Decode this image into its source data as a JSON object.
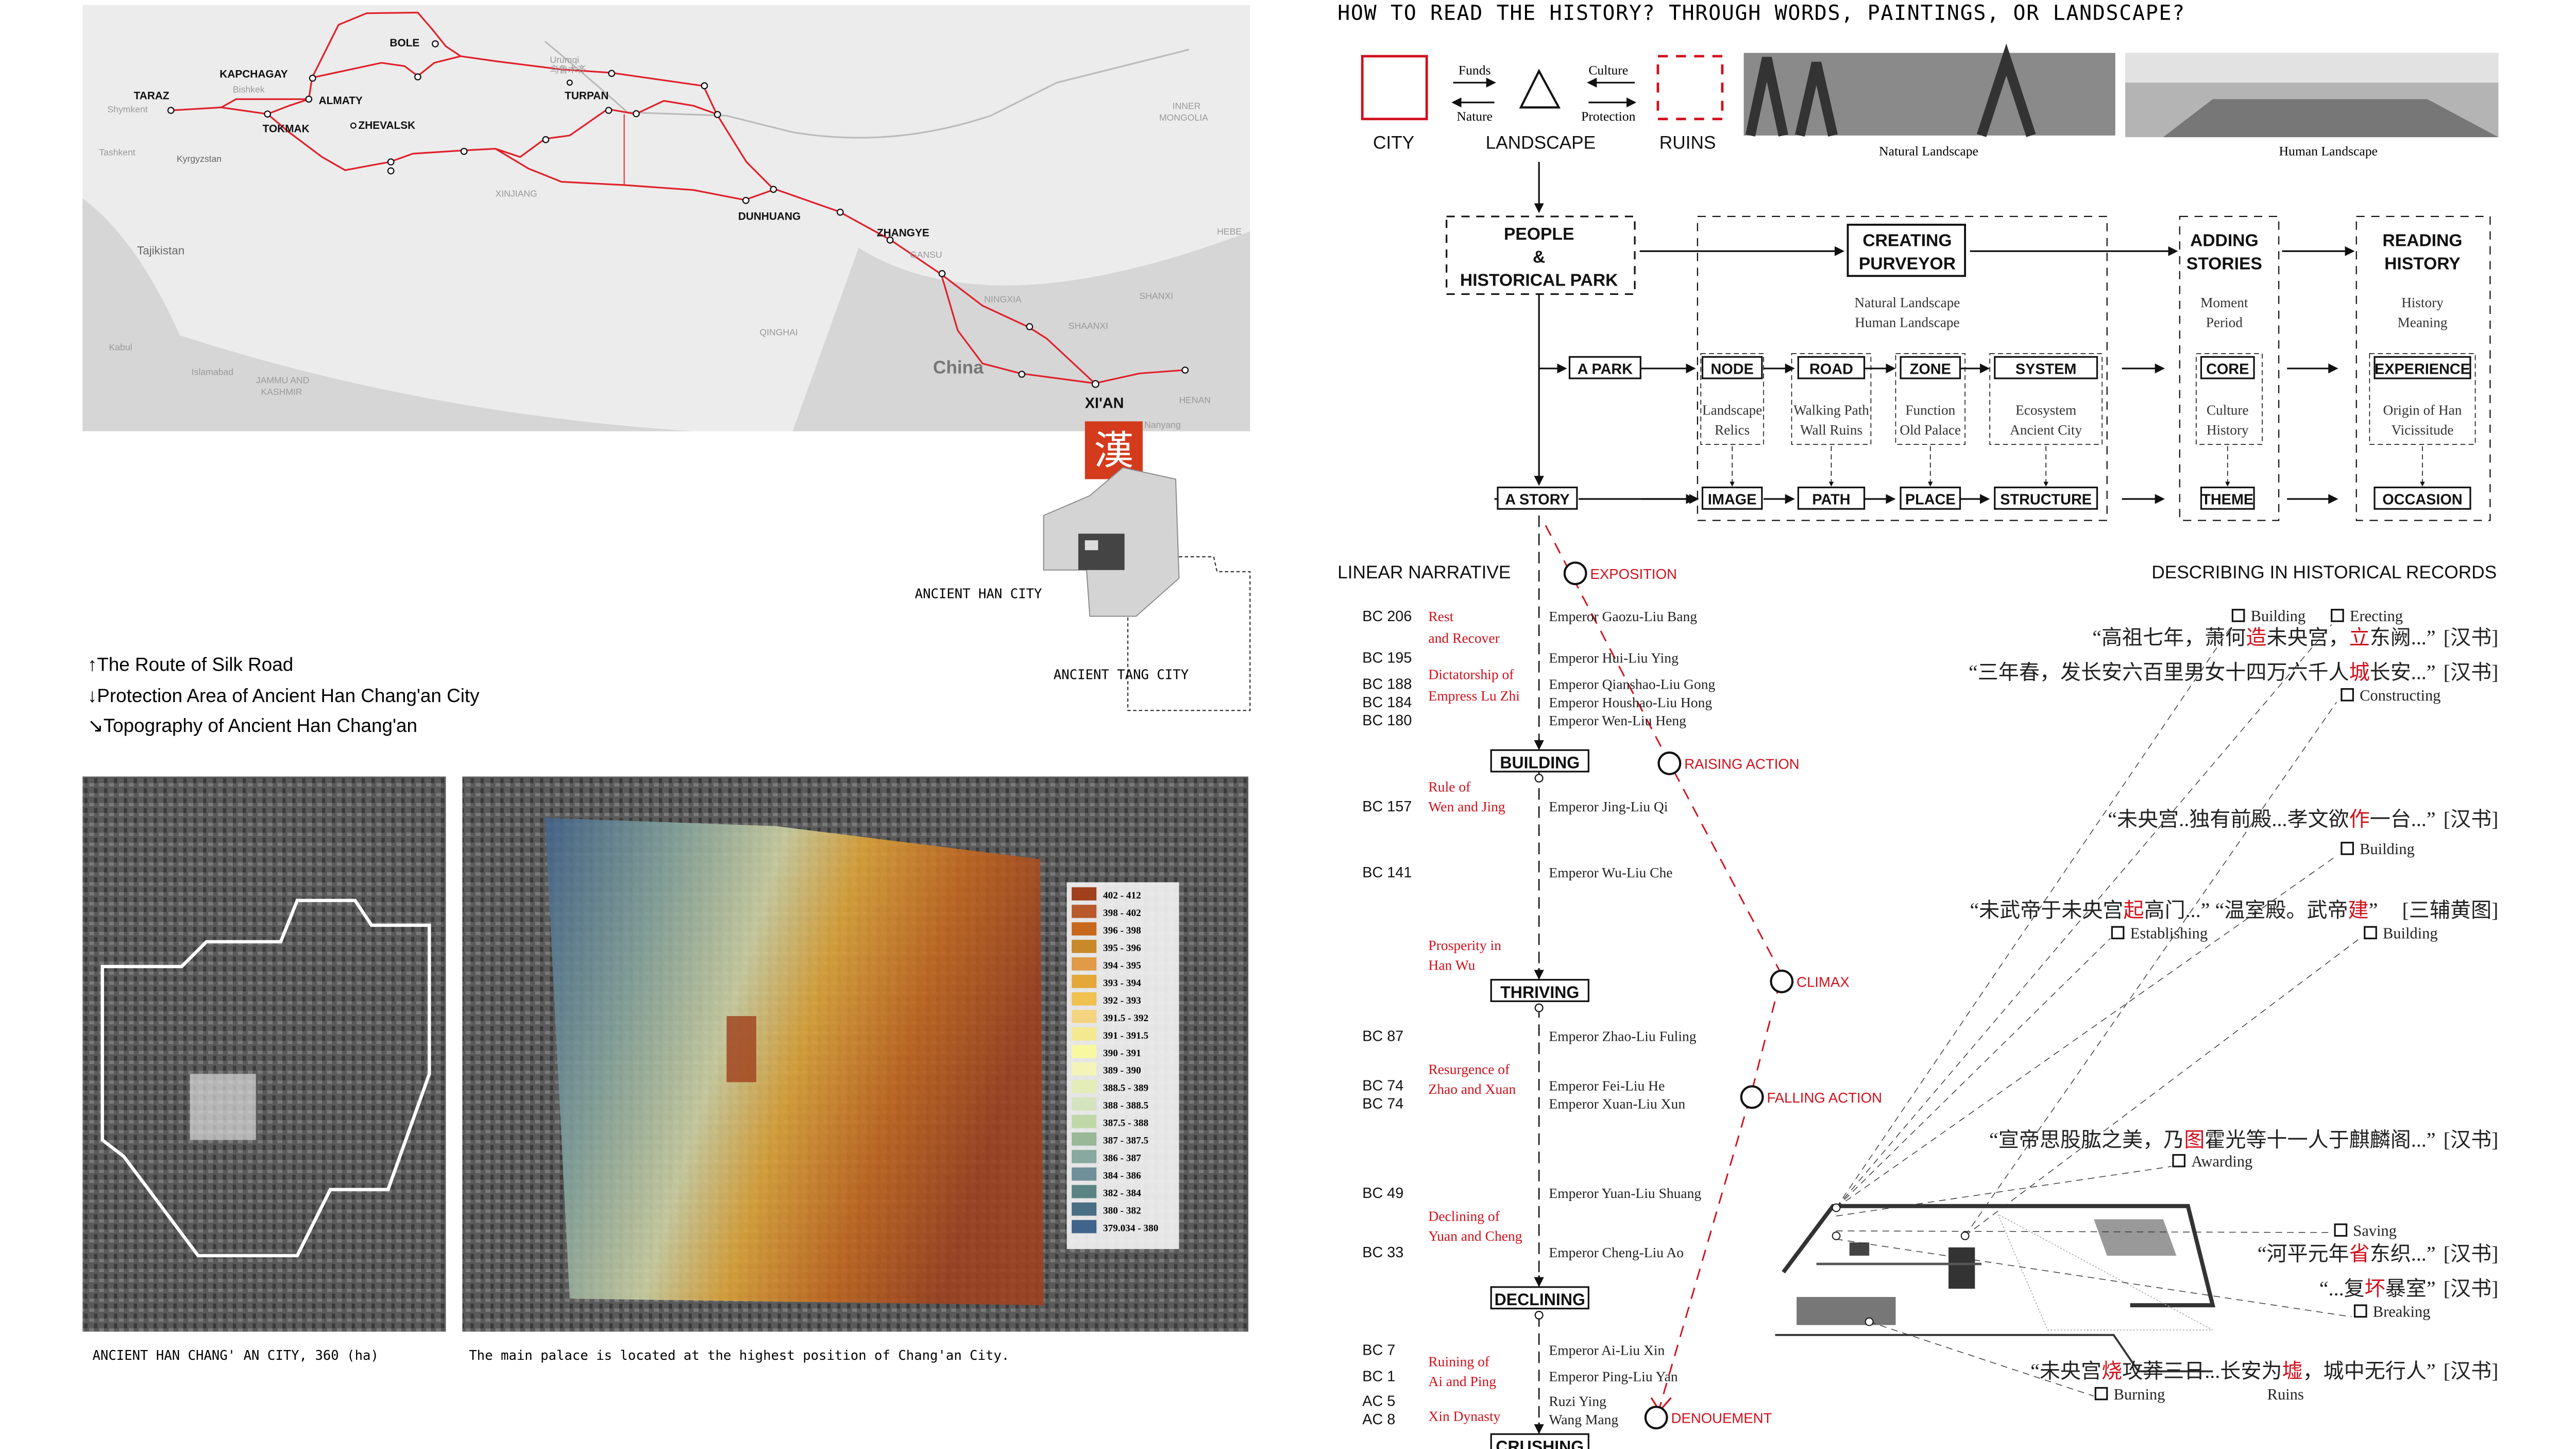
{
  "colors": {
    "accent_red": "#d0101c",
    "route_red": "#e0202a",
    "ink": "#111111"
  },
  "map": {
    "cities": [
      "BOLE",
      "KAPCHAGAY",
      "TARAZ",
      "ALMATY",
      "TOKMAK",
      "ZHEVALSK",
      "TURPAN",
      "DUNHUANG",
      "ZHANGYE",
      "XI'AN"
    ],
    "places": [
      "Urumqi",
      "乌鲁木齐",
      "Bishkek",
      "Shymkent",
      "Tashkent",
      "Kyrgyzstan",
      "Tajikistan",
      "XINJIANG",
      "QINGHAI",
      "GANSU",
      "NINGXIA",
      "SHAANXI",
      "SHANXI",
      "INNER",
      "MONGOLIA",
      "HENAN",
      "Nanyang",
      "China",
      "Kabul",
      "Islamabad",
      "JAMMU AND",
      "KASHMIR",
      "HEBE"
    ],
    "seal_text": "汉"
  },
  "plan": {
    "han_label": "ANCIENT HAN CITY",
    "tang_label": "ANCIENT TANG CITY"
  },
  "legend_left": [
    {
      "arrow": "↑",
      "text": "The Route of Silk Road"
    },
    {
      "arrow": "↓",
      "text": "Protection Area of Ancient Han Chang'an City"
    },
    {
      "arrow": "↘",
      "text": "Topography of Ancient Han Chang'an"
    }
  ],
  "captions": {
    "satellite": "ANCIENT HAN CHANG' AN CITY, 360 (ha)",
    "topography": "The main palace is located at the highest position of Chang'an City."
  },
  "elevation_legend": [
    {
      "range": "402 - 412",
      "color": "#a0401c"
    },
    {
      "range": "398 - 402",
      "color": "#b85a2c"
    },
    {
      "range": "396 - 398",
      "color": "#c8681c"
    },
    {
      "range": "395 - 396",
      "color": "#c88a28"
    },
    {
      "range": "394 - 395",
      "color": "#e09a48"
    },
    {
      "range": "393 - 394",
      "color": "#e4a838"
    },
    {
      "range": "392 - 393",
      "color": "#f0c050"
    },
    {
      "range": "391.5 - 392",
      "color": "#f4d480"
    },
    {
      "range": "391 - 391.5",
      "color": "#f4e890"
    },
    {
      "range": "390 - 391",
      "color": "#f8f8a0"
    },
    {
      "range": "389 - 390",
      "color": "#f4f4b8"
    },
    {
      "range": "388.5 - 389",
      "color": "#e4ecb8"
    },
    {
      "range": "388 - 388.5",
      "color": "#d4e4c0"
    },
    {
      "range": "387.5 - 388",
      "color": "#c0d8a8"
    },
    {
      "range": "387 - 387.5",
      "color": "#98b898"
    },
    {
      "range": "386 - 387",
      "color": "#88a8a0"
    },
    {
      "range": "384 - 386",
      "color": "#6f9098"
    },
    {
      "range": "382 - 384",
      "color": "#5a8484"
    },
    {
      "range": "380 - 382",
      "color": "#4a6e84"
    },
    {
      "range": "379.034 - 380",
      "color": "#40648c"
    }
  ],
  "header": {
    "title": "HOW TO READ THE HISTORY? THROUGH WORDS, PAINTINGS, OR LANDSCAPE?"
  },
  "concept": {
    "city": "CITY",
    "landscape": "LANDSCAPE",
    "ruins": "RUINS",
    "funds": "Funds",
    "nature": "Nature",
    "culture": "Culture",
    "protection": "Protection",
    "photo_natural": "Natural Landscape",
    "photo_human": "Human Landscape"
  },
  "flow": {
    "people": [
      "PEOPLE",
      "&",
      "HISTORICAL PARK"
    ],
    "creating": [
      "CREATING",
      "PURVEYOR"
    ],
    "creating_sub": [
      "Natural Landscape",
      "Human Landscape"
    ],
    "adding": [
      "ADDING",
      "STORIES"
    ],
    "adding_sub": [
      "Moment",
      "Period"
    ],
    "reading": [
      "READING",
      "HISTORY"
    ],
    "reading_sub": [
      "History",
      "Meaning"
    ],
    "park": "A PARK",
    "story": "A STORY",
    "park_row": [
      "NODE",
      "ROAD",
      "ZONE",
      "SYSTEM",
      "CORE",
      "EXPERIENCE"
    ],
    "park_sub": [
      [
        "Landscape",
        "Relics"
      ],
      [
        "Walking Path",
        "Wall Ruins"
      ],
      [
        "Function",
        "Old Palace"
      ],
      [
        "Ecosystem",
        "Ancient City"
      ],
      [
        "Culture",
        "History"
      ],
      [
        "Origin of Han",
        "Vicissitude"
      ]
    ],
    "story_row": [
      "IMAGE",
      "PATH",
      "PLACE",
      "STRUCTURE",
      "THEME",
      "OCCASION"
    ]
  },
  "narrative": {
    "title": "LINEAR NARRATIVE",
    "years": [
      "BC 206",
      "BC 195",
      "BC 188",
      "BC 184",
      "BC 180",
      "BC 157",
      "BC 141",
      "BC 87",
      "BC 74",
      "BC 74",
      "BC 49",
      "BC 33",
      "BC 7",
      "BC 1",
      "AC 5",
      "AC 8"
    ],
    "phases": [
      "Rest",
      "and Recover",
      "Dictatorship of",
      "Empress Lu Zhi",
      "Rule of",
      "Wen and Jing",
      "Prosperity in",
      "Han Wu",
      "Resurgence of",
      "Zhao and Xuan",
      "Declining of",
      "Yuan and Cheng",
      "Ruining of",
      "Ai and Ping",
      "Xin Dynasty"
    ],
    "emperors": [
      "Emperor Gaozu-Liu Bang",
      "Emperor Hui-Liu Ying",
      "Emperor Qianshao-Liu Gong",
      "Emperor Houshao-Liu Hong",
      "Emperor Wen-Liu Heng",
      "Emperor Jing-Liu Qi",
      "Emperor Wu-Liu Che",
      "Emperor Zhao-Liu Fuling",
      "Emperor Fei-Liu He",
      "Emperor Xuan-Liu Xun",
      "Emperor Yuan-Liu Shuang",
      "Emperor Cheng-Liu Ao",
      "Emperor Ai-Liu Xin",
      "Emperor Ping-Liu Yan",
      "Ruzi Ying",
      "Wang Mang"
    ],
    "stages": [
      "BUILDING",
      "THRIVING",
      "DECLINING",
      "CRUSHING"
    ],
    "arc": [
      "EXPOSITION",
      "RAISING ACTION",
      "CLIMAX",
      "FALLING ACTION",
      "DENOUEMENT"
    ]
  },
  "records": {
    "title": "DESCRIBING IN HISTORICAL RECORDS",
    "quotes": [
      {
        "parts": [
          [
            "“高祖七年，萧何",
            0
          ],
          [
            "造",
            1
          ],
          [
            "未央宫，",
            0
          ],
          [
            "立",
            1
          ],
          [
            "东阙...”",
            0
          ]
        ],
        "source": "[汉书]"
      },
      {
        "parts": [
          [
            "“三年春，发长安六百里男女十四万六千人",
            0
          ],
          [
            "城",
            1
          ],
          [
            "长安...”",
            0
          ]
        ],
        "source": "[汉书]"
      },
      {
        "parts": [
          [
            "“未央宫..独有前殿...孝文欲",
            0
          ],
          [
            "作",
            1
          ],
          [
            "一台...”",
            0
          ]
        ],
        "source": "[汉书]"
      },
      {
        "parts": [
          [
            "“未武帝于未央宫",
            0
          ],
          [
            "起",
            1
          ],
          [
            "高门...”  “温室殿。武帝",
            0
          ],
          [
            "建",
            1
          ],
          [
            "”",
            0
          ]
        ],
        "source": "[三辅黄图]"
      },
      {
        "parts": [
          [
            "“宣帝思股肱之美，乃",
            0
          ],
          [
            "图",
            1
          ],
          [
            "霍光等十一人于麒麟阁...”",
            0
          ]
        ],
        "source": "[汉书]"
      },
      {
        "parts": [
          [
            "“河平元年",
            0
          ],
          [
            "省",
            1
          ],
          [
            "东织...”",
            0
          ]
        ],
        "source": "[汉书]"
      },
      {
        "parts": [
          [
            "“...复",
            0
          ],
          [
            "坏",
            1
          ],
          [
            "暴室”",
            0
          ]
        ],
        "source": "[汉书]"
      },
      {
        "parts": [
          [
            "“未央宫",
            0
          ],
          [
            "烧",
            1
          ],
          [
            "攻莽三日...长安为",
            0
          ],
          [
            "墟",
            1
          ],
          [
            "，城中无行人”",
            0
          ]
        ],
        "source": "[汉书]"
      }
    ],
    "tags": [
      "Building",
      "Erecting",
      "Constructing",
      "Building",
      "Establishing",
      "Building",
      "Awarding",
      "Saving",
      "Breaking",
      "Burning"
    ],
    "ruins_label": "Ruins"
  }
}
